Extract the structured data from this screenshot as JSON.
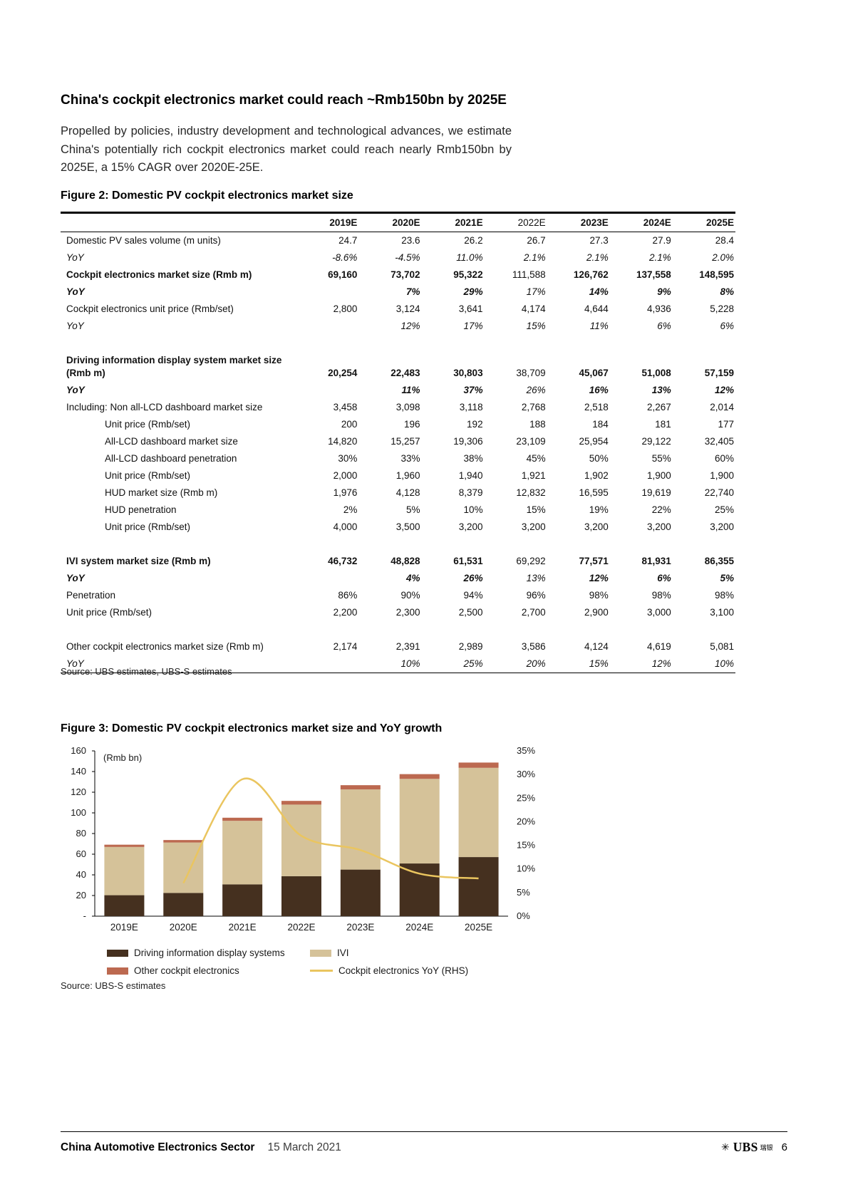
{
  "intro": {
    "heading": "China's cockpit electronics market could reach ~Rmb150bn by 2025E",
    "paragraph": "Propelled by policies, industry development and technological advances, we estimate China's potentially rich cockpit electronics market could reach nearly Rmb150bn by 2025E, a 15% CAGR over 2020E-25E."
  },
  "figure2": {
    "caption": "Figure 2: Domestic PV cockpit electronics market size",
    "source": "Source:  UBS estimates, UBS-S estimates",
    "columns": [
      "",
      "2019E",
      "2020E",
      "2021E",
      "2022E",
      "2023E",
      "2024E",
      "2025E"
    ],
    "deemphasized_value_index": 3,
    "rows": [
      {
        "label": "Domestic PV sales volume (m units)",
        "values": [
          "24.7",
          "23.6",
          "26.2",
          "26.7",
          "27.3",
          "27.9",
          "28.4"
        ],
        "style": "normal"
      },
      {
        "label": "YoY",
        "values": [
          "-8.6%",
          "-4.5%",
          "11.0%",
          "2.1%",
          "2.1%",
          "2.1%",
          "2.0%"
        ],
        "style": "italic"
      },
      {
        "label": "Cockpit electronics market size (Rmb m)",
        "values": [
          "69,160",
          "73,702",
          "95,322",
          "111,588",
          "126,762",
          "137,558",
          "148,595"
        ],
        "style": "bold"
      },
      {
        "label": "YoY",
        "values": [
          "",
          "7%",
          "29%",
          "17%",
          "14%",
          "9%",
          "8%"
        ],
        "style": "bolditalic"
      },
      {
        "label": "Cockpit electronics unit price (Rmb/set)",
        "values": [
          "2,800",
          "3,124",
          "3,641",
          "4,174",
          "4,644",
          "4,936",
          "5,228"
        ],
        "style": "normal"
      },
      {
        "label": "YoY",
        "values": [
          "",
          "12%",
          "17%",
          "15%",
          "11%",
          "6%",
          "6%"
        ],
        "style": "italic"
      },
      {
        "label": "",
        "values": [
          "",
          "",
          "",
          "",
          "",
          "",
          ""
        ],
        "style": "spacer"
      },
      {
        "label": "Driving information display system market size (Rmb m)",
        "values": [
          "20,254",
          "22,483",
          "30,803",
          "38,709",
          "45,067",
          "51,008",
          "57,159"
        ],
        "style": "bold"
      },
      {
        "label": "YoY",
        "values": [
          "",
          "11%",
          "37%",
          "26%",
          "16%",
          "13%",
          "12%"
        ],
        "style": "bolditalic"
      },
      {
        "label": "Including: Non all-LCD dashboard market size",
        "values": [
          "3,458",
          "3,098",
          "3,118",
          "2,768",
          "2,518",
          "2,267",
          "2,014"
        ],
        "style": "normal"
      },
      {
        "label": "Unit price (Rmb/set)",
        "values": [
          "200",
          "196",
          "192",
          "188",
          "184",
          "181",
          "177"
        ],
        "style": "indent"
      },
      {
        "label": "All-LCD dashboard market size",
        "values": [
          "14,820",
          "15,257",
          "19,306",
          "23,109",
          "25,954",
          "29,122",
          "32,405"
        ],
        "style": "indent"
      },
      {
        "label": "All-LCD dashboard penetration",
        "values": [
          "30%",
          "33%",
          "38%",
          "45%",
          "50%",
          "55%",
          "60%"
        ],
        "style": "indent"
      },
      {
        "label": "Unit price (Rmb/set)",
        "values": [
          "2,000",
          "1,960",
          "1,940",
          "1,921",
          "1,902",
          "1,900",
          "1,900"
        ],
        "style": "indent"
      },
      {
        "label": "HUD market size (Rmb m)",
        "values": [
          "1,976",
          "4,128",
          "8,379",
          "12,832",
          "16,595",
          "19,619",
          "22,740"
        ],
        "style": "indent"
      },
      {
        "label": "HUD penetration",
        "values": [
          "2%",
          "5%",
          "10%",
          "15%",
          "19%",
          "22%",
          "25%"
        ],
        "style": "indent"
      },
      {
        "label": "Unit price (Rmb/set)",
        "values": [
          "4,000",
          "3,500",
          "3,200",
          "3,200",
          "3,200",
          "3,200",
          "3,200"
        ],
        "style": "indent"
      },
      {
        "label": "",
        "values": [
          "",
          "",
          "",
          "",
          "",
          "",
          ""
        ],
        "style": "spacer"
      },
      {
        "label": "IVI system market size (Rmb m)",
        "values": [
          "46,732",
          "48,828",
          "61,531",
          "69,292",
          "77,571",
          "81,931",
          "86,355"
        ],
        "style": "bold"
      },
      {
        "label": "YoY",
        "values": [
          "",
          "4%",
          "26%",
          "13%",
          "12%",
          "6%",
          "5%"
        ],
        "style": "bolditalic"
      },
      {
        "label": "Penetration",
        "values": [
          "86%",
          "90%",
          "94%",
          "96%",
          "98%",
          "98%",
          "98%"
        ],
        "style": "normal"
      },
      {
        "label": "Unit price (Rmb/set)",
        "values": [
          "2,200",
          "2,300",
          "2,500",
          "2,700",
          "2,900",
          "3,000",
          "3,100"
        ],
        "style": "normal"
      },
      {
        "label": "",
        "values": [
          "",
          "",
          "",
          "",
          "",
          "",
          ""
        ],
        "style": "spacer"
      },
      {
        "label": "Other cockpit electronics market size (Rmb m)",
        "values": [
          "2,174",
          "2,391",
          "2,989",
          "3,586",
          "4,124",
          "4,619",
          "5,081"
        ],
        "style": "normal"
      },
      {
        "label": "YoY",
        "values": [
          "",
          "10%",
          "25%",
          "20%",
          "15%",
          "12%",
          "10%"
        ],
        "style": "italic"
      }
    ]
  },
  "figure3": {
    "caption": "Figure 3: Domestic PV cockpit electronics market size and YoY growth",
    "source": "Source:  UBS-S estimates"
  },
  "chart_data": {
    "type": "bar",
    "subtype": "stacked-bar-with-line",
    "title": "Domestic PV cockpit electronics market size and YoY growth",
    "categories": [
      "2019E",
      "2020E",
      "2021E",
      "2022E",
      "2023E",
      "2024E",
      "2025E"
    ],
    "series": [
      {
        "name": "Driving information display systems",
        "type": "bar",
        "color": "#45301f",
        "values": [
          20.3,
          22.5,
          30.8,
          38.7,
          45.1,
          51.0,
          57.2
        ]
      },
      {
        "name": "IVI",
        "type": "bar",
        "color": "#d5c299",
        "values": [
          46.7,
          48.8,
          61.5,
          69.3,
          77.6,
          81.9,
          86.4
        ]
      },
      {
        "name": "Other cockpit electronics",
        "type": "bar",
        "color": "#bc6950",
        "values": [
          2.2,
          2.4,
          3.0,
          3.6,
          4.1,
          4.6,
          5.1
        ]
      },
      {
        "name": "Cockpit electronics YoY (RHS)",
        "type": "line",
        "axis": "right",
        "color": "#eac55f",
        "values": [
          null,
          7,
          29,
          17,
          14,
          9,
          8
        ]
      }
    ],
    "left_axis": {
      "label": "(Rmb bn)",
      "min": 0,
      "max": 160,
      "ticks": [
        "160",
        "140",
        "120",
        "100",
        "80",
        "60",
        "40",
        "20",
        "-"
      ]
    },
    "right_axis": {
      "min": 0,
      "max": 35,
      "ticks": [
        "35%",
        "30%",
        "25%",
        "20%",
        "15%",
        "10%",
        "5%",
        "0%"
      ]
    },
    "grid": false,
    "legend_position": "bottom"
  },
  "footer": {
    "title": "China Automotive Electronics Sector",
    "date": "15 March 2021",
    "brand": "UBS",
    "brand_suffix": "瑞银",
    "page_number": "6"
  }
}
